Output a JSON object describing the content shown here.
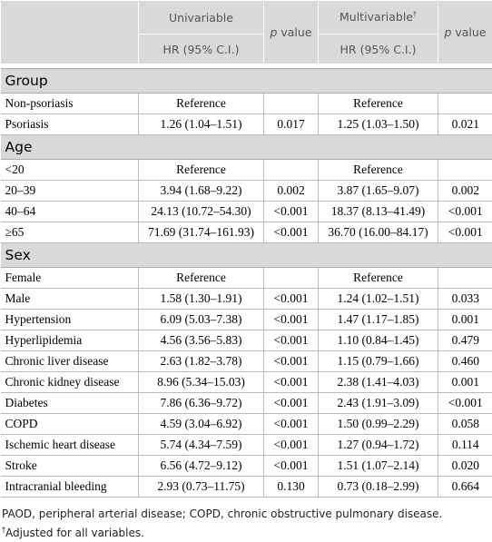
{
  "header": {
    "univariable": "Univariable",
    "multivariable": "Multivariable",
    "dagger": "†",
    "hr_1": "HR (95% C.I.)",
    "hr_2": "HR (95% C.I.)",
    "p_value_1": {
      "p": "p",
      "label": "value"
    },
    "p_value_2": {
      "p": "p",
      "label": "value"
    }
  },
  "sections": [
    {
      "title": "Group",
      "rows": [
        {
          "label": "Non-psoriasis",
          "uni_hr": "Reference",
          "multi_hr": "Reference"
        },
        {
          "label": "Psoriasis",
          "uni_hr": "1.26 (1.04–1.51)",
          "uni_p": "0.017",
          "multi_hr": "1.25 (1.03–1.50)",
          "multi_p": "0.021"
        }
      ]
    },
    {
      "title": "Age",
      "rows": [
        {
          "label": "<20",
          "uni_hr": "Reference",
          "multi_hr": "Reference"
        },
        {
          "label": "20–39",
          "uni_hr": "3.94 (1.68–9.22)",
          "uni_p": "0.002",
          "multi_hr": "3.87 (1.65–9.07)",
          "multi_p": "0.002"
        },
        {
          "label": "40–64",
          "uni_hr": "24.13 (10.72–54.30)",
          "uni_p": "<0.001",
          "multi_hr": "18.37 (8.13–41.49)",
          "multi_p": "<0.001"
        },
        {
          "label": "≥65",
          "uni_hr": "71.69 (31.74–161.93)",
          "uni_p": "<0.001",
          "multi_hr": "36.70 (16.00–84.17)",
          "multi_p": "<0.001"
        }
      ]
    },
    {
      "title": "Sex",
      "rows": [
        {
          "label": "Female",
          "uni_hr": "Reference",
          "multi_hr": "Reference"
        },
        {
          "label": "Male",
          "uni_hr": "1.58 (1.30–1.91)",
          "uni_p": "<0.001",
          "multi_hr": "1.24 (1.02–1.51)",
          "multi_p": "0.033"
        },
        {
          "label": "Hypertension",
          "uni_hr": "6.09 (5.03–7.38)",
          "uni_p": "<0.001",
          "multi_hr": "1.47 (1.17–1.85)",
          "multi_p": "0.001"
        },
        {
          "label": "Hyperlipidemia",
          "uni_hr": "4.56 (3.56–5.83)",
          "uni_p": "<0.001",
          "multi_hr": "1.10 (0.84–1.45)",
          "multi_p": "0.479"
        },
        {
          "label": "Chronic liver disease",
          "uni_hr": "2.63 (1.82–3.78)",
          "uni_p": "<0.001",
          "multi_hr": "1.15 (0.79–1.66)",
          "multi_p": "0.460"
        },
        {
          "label": "Chronic kidney disease",
          "uni_hr": "8.96 (5.34–15.03)",
          "uni_p": "<0.001",
          "multi_hr": "2.38 (1.41–4.03)",
          "multi_p": "0.001"
        },
        {
          "label": "Diabetes",
          "uni_hr": "7.86 (6.36–9.72)",
          "uni_p": "<0.001",
          "multi_hr": "2.43 (1.91–3.09)",
          "multi_p": "<0.001"
        },
        {
          "label": "COPD",
          "uni_hr": "4.59 (3.04–6.92)",
          "uni_p": "<0.001",
          "multi_hr": "1.50 (0.99–2.29)",
          "multi_p": "0.058"
        },
        {
          "label": "Ischemic heart disease",
          "uni_hr": "5.74 (4.34–7.59)",
          "uni_p": "<0.001",
          "multi_hr": "1.27 (0.94–1.72)",
          "multi_p": "0.114"
        },
        {
          "label": "Stroke",
          "uni_hr": "6.56 (4.72–9.12)",
          "uni_p": "<0.001",
          "multi_hr": "1.51 (1.07–2.14)",
          "multi_p": "0.020"
        },
        {
          "label": "Intracranial bleeding",
          "uni_hr": "2.93 (0.73–11.75)",
          "uni_p": "0.130",
          "multi_hr": "0.73 (0.18–2.99)",
          "multi_p": "0.664"
        }
      ]
    }
  ],
  "footnotes": {
    "abbreviations": "PAOD, peripheral arterial disease; COPD, chronic obstructive pulmonary disease.",
    "adjusted": {
      "mark": "†",
      "text": "Adjusted for all variables."
    }
  }
}
